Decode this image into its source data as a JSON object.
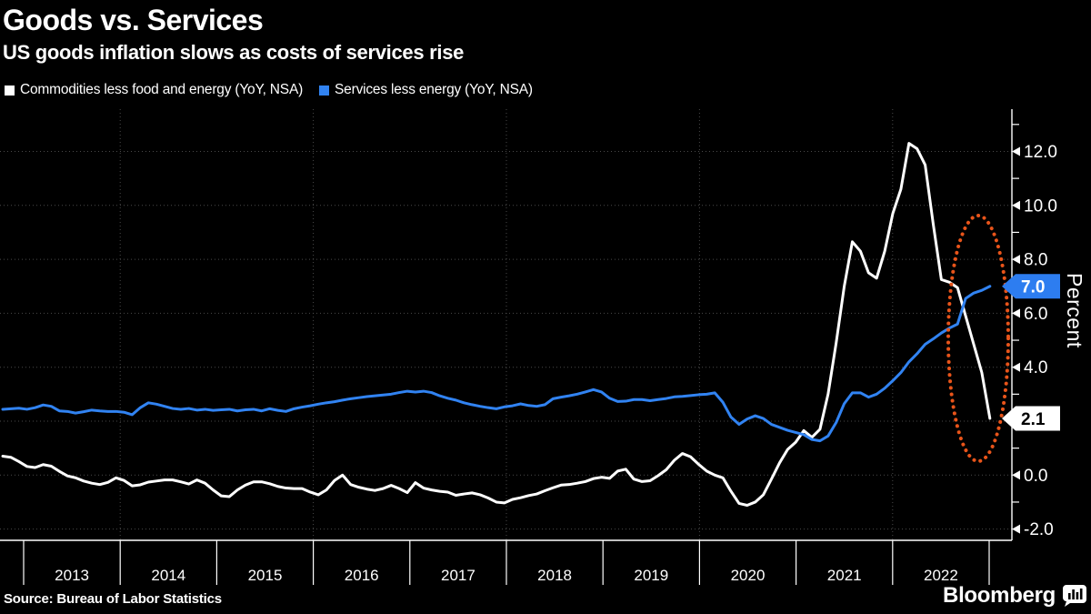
{
  "header": {
    "title": "Goods vs. Services",
    "subtitle": "US goods inflation slows as costs of services rise"
  },
  "legend": [
    {
      "label": "Commodities less food and energy (YoY, NSA)",
      "color": "#ffffff"
    },
    {
      "label": "Services less energy (YoY, NSA)",
      "color": "#3183f2"
    }
  ],
  "y_axis": {
    "title": "Percent",
    "major_ticks": [
      {
        "value": 12,
        "label": "12.0"
      },
      {
        "value": 10,
        "label": "10.0"
      },
      {
        "value": 8,
        "label": "8.0"
      },
      {
        "value": 6,
        "label": "6.0"
      },
      {
        "value": 4,
        "label": "4.0"
      },
      {
        "value": 0,
        "label": "0.0"
      },
      {
        "value": -2,
        "label": "-2.0"
      }
    ],
    "minor_ticks": [
      13,
      11,
      9,
      5,
      3,
      1,
      -1
    ],
    "callouts": [
      {
        "value": 7.0,
        "label": "7.0",
        "bg": "#2d7df0",
        "fg": "#ffffff"
      },
      {
        "value": 2.1,
        "label": "2.1",
        "bg": "#ffffff",
        "fg": "#000000"
      }
    ]
  },
  "x_axis": {
    "years": [
      "2013",
      "2014",
      "2015",
      "2016",
      "2017",
      "2018",
      "2019",
      "2020",
      "2021",
      "2022"
    ]
  },
  "footer": {
    "source": "Source: Bureau of Labor Statistics",
    "brand": "Bloomberg"
  },
  "chart_data": {
    "type": "line",
    "title": "Goods vs. Services",
    "subtitle": "US goods inflation slows as costs of services rise",
    "ylabel": "Percent",
    "ylim": [
      -2.4,
      13.6
    ],
    "x_start": "2012-10",
    "x_end": "2022-12",
    "frequency": "monthly",
    "y_gridlines": [
      -2,
      0,
      2,
      4,
      6,
      8,
      10,
      12
    ],
    "x_gridline_years": [
      2014,
      2016,
      2018,
      2020,
      2022
    ],
    "legend_position": "top-left",
    "series": [
      {
        "name": "Commodities less food and energy (YoY, NSA)",
        "color": "#ffffff",
        "last_value": 2.1,
        "values": [
          0.7,
          0.66,
          0.5,
          0.32,
          0.28,
          0.39,
          0.33,
          0.14,
          -0.03,
          -0.1,
          -0.22,
          -0.3,
          -0.35,
          -0.27,
          -0.1,
          -0.2,
          -0.4,
          -0.36,
          -0.26,
          -0.22,
          -0.18,
          -0.18,
          -0.25,
          -0.33,
          -0.18,
          -0.3,
          -0.55,
          -0.77,
          -0.8,
          -0.55,
          -0.37,
          -0.25,
          -0.25,
          -0.32,
          -0.42,
          -0.48,
          -0.5,
          -0.5,
          -0.63,
          -0.73,
          -0.55,
          -0.2,
          0.0,
          -0.35,
          -0.45,
          -0.52,
          -0.57,
          -0.5,
          -0.38,
          -0.5,
          -0.65,
          -0.28,
          -0.48,
          -0.55,
          -0.6,
          -0.63,
          -0.75,
          -0.7,
          -0.66,
          -0.73,
          -0.85,
          -1.0,
          -1.03,
          -0.9,
          -0.84,
          -0.76,
          -0.7,
          -0.58,
          -0.47,
          -0.37,
          -0.35,
          -0.3,
          -0.24,
          -0.13,
          -0.08,
          -0.12,
          0.15,
          0.22,
          -0.15,
          -0.24,
          -0.21,
          -0.02,
          0.2,
          0.55,
          0.8,
          0.68,
          0.4,
          0.15,
          0.0,
          -0.1,
          -0.6,
          -1.05,
          -1.12,
          -1.0,
          -0.73,
          -0.15,
          0.45,
          0.95,
          1.22,
          1.65,
          1.4,
          1.7,
          3.0,
          4.9,
          7.0,
          8.65,
          8.3,
          7.5,
          7.3,
          8.3,
          9.7,
          10.6,
          12.3,
          12.1,
          11.5,
          9.3,
          7.25,
          7.15,
          6.95,
          5.9,
          4.85,
          3.8,
          2.1
        ]
      },
      {
        "name": "Services less energy (YoY, NSA)",
        "color": "#3183f2",
        "last_value": 7.0,
        "values": [
          2.44,
          2.46,
          2.48,
          2.44,
          2.5,
          2.6,
          2.55,
          2.38,
          2.36,
          2.3,
          2.35,
          2.41,
          2.38,
          2.36,
          2.36,
          2.33,
          2.24,
          2.5,
          2.68,
          2.63,
          2.55,
          2.47,
          2.44,
          2.47,
          2.41,
          2.44,
          2.4,
          2.42,
          2.44,
          2.38,
          2.42,
          2.44,
          2.38,
          2.46,
          2.4,
          2.36,
          2.46,
          2.52,
          2.57,
          2.63,
          2.68,
          2.72,
          2.78,
          2.83,
          2.87,
          2.91,
          2.94,
          2.97,
          3.0,
          3.06,
          3.11,
          3.08,
          3.11,
          3.06,
          2.94,
          2.85,
          2.78,
          2.68,
          2.61,
          2.55,
          2.5,
          2.46,
          2.53,
          2.57,
          2.64,
          2.58,
          2.55,
          2.61,
          2.83,
          2.89,
          2.94,
          3.0,
          3.08,
          3.17,
          3.08,
          2.85,
          2.73,
          2.74,
          2.8,
          2.8,
          2.76,
          2.8,
          2.84,
          2.9,
          2.92,
          2.95,
          2.98,
          3.0,
          3.05,
          2.7,
          2.15,
          1.88,
          2.08,
          2.2,
          2.1,
          1.88,
          1.77,
          1.66,
          1.58,
          1.5,
          1.32,
          1.27,
          1.45,
          1.95,
          2.65,
          3.05,
          3.05,
          2.89,
          3.0,
          3.22,
          3.5,
          3.8,
          4.2,
          4.5,
          4.85,
          5.05,
          5.27,
          5.45,
          5.6,
          6.55,
          6.75,
          6.85,
          7.0
        ]
      }
    ],
    "annotation": {
      "shape": "dotted-ellipse",
      "color": "#e8541a",
      "note": "highlights late-2022 divergence: goods inflation falling to 2.1 while services rise to 7.0"
    }
  }
}
